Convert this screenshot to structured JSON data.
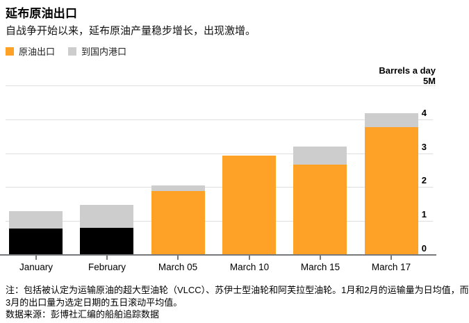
{
  "header": {
    "title": "延布原油出口",
    "subtitle": "自战争开始以来，延布原油产量稳步增长，出现激增。"
  },
  "legend": {
    "items": [
      {
        "label": "原油出口",
        "color": "#FEA227"
      },
      {
        "label": "到国内港口",
        "color": "#CDCDCD"
      }
    ]
  },
  "chart_data": {
    "type": "bar",
    "stacked": true,
    "unit_label": "Barrels a day",
    "top_tick_label": "5M",
    "ylim": [
      0,
      5
    ],
    "yticks": [
      0,
      1,
      2,
      3,
      4
    ],
    "grid": true,
    "legend_position": "top-left",
    "categories": [
      "January",
      "February",
      "March 05",
      "March 10",
      "March 15",
      "March 17"
    ],
    "series": [
      {
        "name": "原油出口",
        "values": [
          0.78,
          0.79,
          1.88,
          2.94,
          2.66,
          3.78
        ],
        "colors": [
          "#000000",
          "#000000",
          "#FEA227",
          "#FEA227",
          "#FEA227",
          "#FEA227"
        ]
      },
      {
        "name": "到国内港口",
        "values": [
          0.51,
          0.68,
          0.16,
          0,
          0.53,
          0.4
        ],
        "color": "#CDCDCD"
      }
    ],
    "note": "1月和2月为日均值；3月为选定日期的五日滚动平均值"
  },
  "notes": {
    "line1": "注：包括被认定为运输原油的超大型油轮（VLCC）、苏伊士型油轮和阿芙拉型油轮。1月和2月的运输量为日均值，而",
    "line2": "3月的出口量为选定日期的五日滚动平均值。",
    "source": "数据来源：彭博社汇编的船舶追踪数据"
  }
}
